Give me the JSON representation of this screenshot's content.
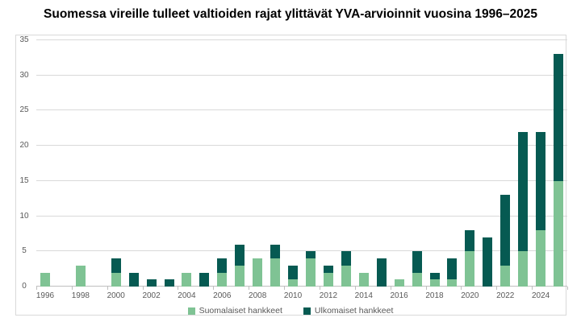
{
  "title": "Suomessa vireille tulleet valtioiden rajat ylittävät YVA-arvioinnit vuosina 1996–2025",
  "colors": {
    "series_finnish": "#7fc394",
    "series_foreign": "#065a52",
    "gridline": "#d9d9d9",
    "axis_line": "#bfbfbf",
    "axis_text": "#595959",
    "frame_border": "#d9d9d9",
    "background": "#ffffff"
  },
  "chart_data": {
    "type": "bar",
    "stacked": true,
    "title": "Suomessa vireille tulleet valtioiden rajat ylittävät YVA-arvioinnit vuosina 1996–2025",
    "categories": [
      "1996",
      "1997",
      "1998",
      "1999",
      "2000",
      "2001",
      "2002",
      "2003",
      "2004",
      "2005",
      "2006",
      "2007",
      "2008",
      "2009",
      "2010",
      "2011",
      "2012",
      "2013",
      "2014",
      "2015",
      "2016",
      "2017",
      "2018",
      "2019",
      "2020",
      "2021",
      "2022",
      "2023",
      "2024",
      "2025"
    ],
    "series": [
      {
        "name": "Suomalaiset hankkeet",
        "color": "#7fc394",
        "values": [
          2,
          0,
          3,
          0,
          2,
          0,
          0,
          0,
          2,
          0,
          2,
          3,
          4,
          4,
          1,
          4,
          2,
          3,
          2,
          0,
          1,
          2,
          1,
          1,
          5,
          0,
          3,
          5,
          8,
          15
        ]
      },
      {
        "name": "Ulkomaiset hankkeet",
        "color": "#065a52",
        "values": [
          0,
          0,
          0,
          0,
          2,
          2,
          1,
          1,
          0,
          2,
          2,
          3,
          0,
          2,
          2,
          1,
          1,
          2,
          0,
          4,
          0,
          3,
          1,
          3,
          3,
          7,
          10,
          17,
          14,
          18
        ]
      }
    ],
    "totals": [
      2,
      0,
      3,
      0,
      4,
      2,
      1,
      1,
      2,
      2,
      4,
      6,
      4,
      6,
      3,
      5,
      3,
      5,
      2,
      4,
      1,
      5,
      2,
      4,
      8,
      7,
      13,
      22,
      22,
      33
    ],
    "xlabel": "",
    "ylabel": "",
    "ylim": [
      0,
      35
    ],
    "yticks": [
      0,
      5,
      10,
      15,
      20,
      25,
      30,
      35
    ],
    "xtick_labels": [
      "1996",
      "1998",
      "2000",
      "2002",
      "2004",
      "2006",
      "2008",
      "2010",
      "2012",
      "2014",
      "2016",
      "2018",
      "2020",
      "2022",
      "2024"
    ],
    "xtick_label_interval": 2,
    "grid": true,
    "legend_position": "bottom"
  }
}
